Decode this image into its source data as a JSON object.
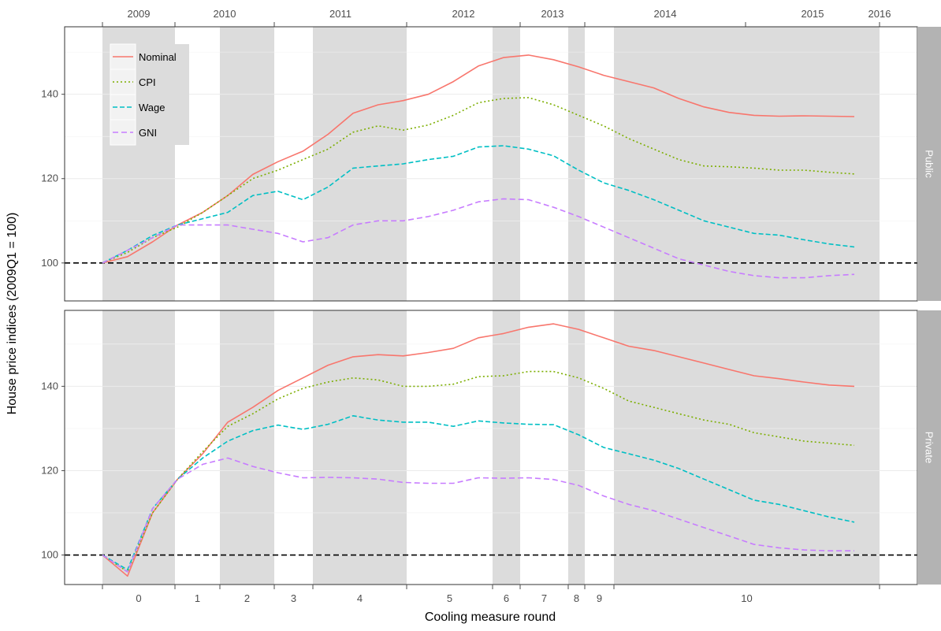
{
  "chart_data": {
    "type": "line",
    "xlabel": "Cooling measure round",
    "ylabel": "House price indices (2009Q1 = 100)",
    "x_quarters": [
      "2009Q1",
      "2009Q2",
      "2009Q3",
      "2009Q4",
      "2010Q1",
      "2010Q2",
      "2010Q3",
      "2010Q4",
      "2011Q1",
      "2011Q2",
      "2011Q3",
      "2011Q4",
      "2012Q1",
      "2012Q2",
      "2012Q3",
      "2012Q4",
      "2013Q1",
      "2013Q2",
      "2013Q3",
      "2013Q4",
      "2014Q1",
      "2014Q2",
      "2014Q3",
      "2014Q4",
      "2015Q1",
      "2015Q2",
      "2015Q3",
      "2015Q4",
      "2016Q1",
      "2016Q2",
      "2016Q3"
    ],
    "year_labels": [
      "2009",
      "2010",
      "2011",
      "2012",
      "2013",
      "2014",
      "2015",
      "2016"
    ],
    "round_labels": [
      "0",
      "1",
      "2",
      "3",
      "4",
      "5",
      "6",
      "7",
      "8",
      "9",
      "10"
    ],
    "round_band_shading": [
      true,
      false,
      true,
      false,
      true,
      false,
      true,
      false,
      true,
      false,
      true
    ],
    "reference_line_y": 100,
    "legend": {
      "placement": "top-left",
      "entries": [
        {
          "name": "Nominal",
          "color": "#f8766d",
          "dash": "solid"
        },
        {
          "name": "CPI",
          "color": "#7cae00",
          "dash": "dotted"
        },
        {
          "name": "Wage",
          "color": "#00bfc4",
          "dash": "dashed"
        },
        {
          "name": "GNI",
          "color": "#c77cff",
          "dash": "longdash"
        }
      ]
    },
    "panels": [
      {
        "name": "Public",
        "yticks": [
          100,
          120,
          140
        ],
        "ylim": [
          91,
          156
        ],
        "series": [
          {
            "name": "Nominal",
            "values": [
              100,
              101.5,
              105,
              109,
              112,
              116,
              121,
              124,
              126.5,
              130.5,
              135.5,
              137.5,
              138.5,
              140,
              143,
              146.7,
              148.7,
              149.3,
              148.2,
              146.5,
              144.5,
              143,
              141.5,
              139,
              137,
              135.7,
              135,
              134.8,
              134.9,
              134.8,
              134.7
            ]
          },
          {
            "name": "CPI",
            "values": [
              100,
              102.5,
              106,
              108.5,
              112,
              116,
              120,
              122,
              124.5,
              127,
              131,
              132.5,
              131.5,
              132.7,
              135,
              138,
              139,
              139.2,
              137.5,
              135,
              132.5,
              129.5,
              127,
              124.5,
              123,
              122.8,
              122.5,
              122,
              122,
              121.5,
              121.1
            ]
          },
          {
            "name": "Wage",
            "values": [
              100,
              103,
              106.5,
              109,
              110.5,
              112,
              116,
              117,
              115,
              118,
              122.5,
              123,
              123.5,
              124.5,
              125.3,
              127.5,
              127.8,
              127,
              125.4,
              122,
              119,
              117.2,
              115,
              112.5,
              110,
              108.5,
              107,
              106.6,
              105.5,
              104.5,
              103.8
            ]
          },
          {
            "name": "GNI",
            "values": [
              100,
              103,
              106,
              109,
              109,
              109,
              108,
              107,
              105,
              106,
              109,
              110,
              110,
              111,
              112.5,
              114.5,
              115.2,
              115,
              113.2,
              111,
              108.5,
              106,
              103.5,
              101,
              99.5,
              98,
              97,
              96.5,
              96.5,
              97,
              97.3
            ]
          }
        ]
      },
      {
        "name": "Private",
        "yticks": [
          100,
          120,
          140
        ],
        "ylim": [
          93,
          158
        ],
        "series": [
          {
            "name": "Nominal",
            "values": [
              100,
              95,
              110,
              118,
              124,
              131.5,
              135,
              139,
              142,
              145,
              147,
              147.5,
              147.2,
              148,
              149,
              151.5,
              152.5,
              154,
              154.8,
              153.5,
              151.5,
              149.5,
              148.5,
              147,
              145.5,
              144,
              142.5,
              141.8,
              141,
              140.3,
              140
            ]
          },
          {
            "name": "CPI",
            "values": [
              100,
              96,
              110,
              118,
              124.5,
              130.5,
              133.5,
              137,
              139.5,
              141,
              142,
              141.5,
              140,
              140,
              140.5,
              142.3,
              142.5,
              143.5,
              143.5,
              142,
              139.5,
              136.5,
              135,
              133.5,
              132,
              131,
              129,
              128,
              127,
              126.5,
              126
            ]
          },
          {
            "name": "Wage",
            "values": [
              100,
              96.5,
              111,
              118,
              123,
              127,
              129.5,
              130.8,
              129.8,
              131,
              133,
              132,
              131.5,
              131.5,
              130.5,
              131.8,
              131.3,
              131,
              130.9,
              128.5,
              125.5,
              124,
              122.5,
              120.5,
              118,
              115.5,
              113,
              112,
              110.5,
              109,
              107.8
            ]
          },
          {
            "name": "GNI",
            "values": [
              100,
              96,
              111,
              118,
              121.5,
              123,
              121,
              119.5,
              118.3,
              118.4,
              118.3,
              118,
              117.2,
              117,
              117,
              118.3,
              118.2,
              118.3,
              117.9,
              116.5,
              114,
              112,
              110.5,
              108.5,
              106.5,
              104.5,
              102.5,
              101.7,
              101.2,
              101,
              101
            ]
          }
        ]
      }
    ]
  }
}
